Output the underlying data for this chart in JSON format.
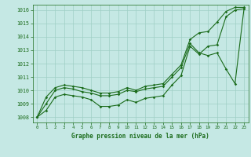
{
  "title": "Graphe pression niveau de la mer (hPa)",
  "bg_color": "#c5e8e4",
  "grid_color": "#9fcfc5",
  "line_color": "#1a6b1a",
  "x": [
    0,
    1,
    2,
    3,
    4,
    5,
    6,
    7,
    8,
    9,
    10,
    11,
    12,
    13,
    14,
    15,
    16,
    17,
    18,
    19,
    20,
    21,
    22,
    23
  ],
  "y_wavy": [
    1008.0,
    1008.5,
    1009.5,
    1009.7,
    1009.6,
    1009.5,
    1009.3,
    1008.8,
    1008.8,
    1008.9,
    1009.3,
    1009.1,
    1009.4,
    1009.5,
    1009.6,
    1010.4,
    1011.1,
    1013.3,
    1012.7,
    1013.3,
    1013.4,
    1015.5,
    1016.0,
    1016.1
  ],
  "y_mid": [
    1008.0,
    1009.0,
    1010.0,
    1010.2,
    1010.1,
    1009.9,
    1009.8,
    1009.6,
    1009.6,
    1009.7,
    1010.0,
    1009.9,
    1010.1,
    1010.2,
    1010.3,
    1011.0,
    1011.7,
    1013.5,
    1012.8,
    1012.6,
    1012.8,
    1011.6,
    1010.5,
    1016.1
  ],
  "y_top": [
    1008.0,
    1009.5,
    1010.2,
    1010.4,
    1010.3,
    1010.2,
    1010.0,
    1009.8,
    1009.8,
    1009.9,
    1010.2,
    1010.0,
    1010.3,
    1010.4,
    1010.5,
    1011.2,
    1011.9,
    1013.8,
    1014.3,
    1014.4,
    1015.1,
    1015.9,
    1016.2,
    1016.2
  ],
  "ylim": [
    1007.6,
    1016.4
  ],
  "xlim": [
    -0.5,
    23.5
  ],
  "yticks": [
    1008,
    1009,
    1010,
    1011,
    1012,
    1013,
    1014,
    1015,
    1016
  ],
  "xticks": [
    0,
    1,
    2,
    3,
    4,
    5,
    6,
    7,
    8,
    9,
    10,
    11,
    12,
    13,
    14,
    15,
    16,
    17,
    18,
    19,
    20,
    21,
    22,
    23
  ]
}
